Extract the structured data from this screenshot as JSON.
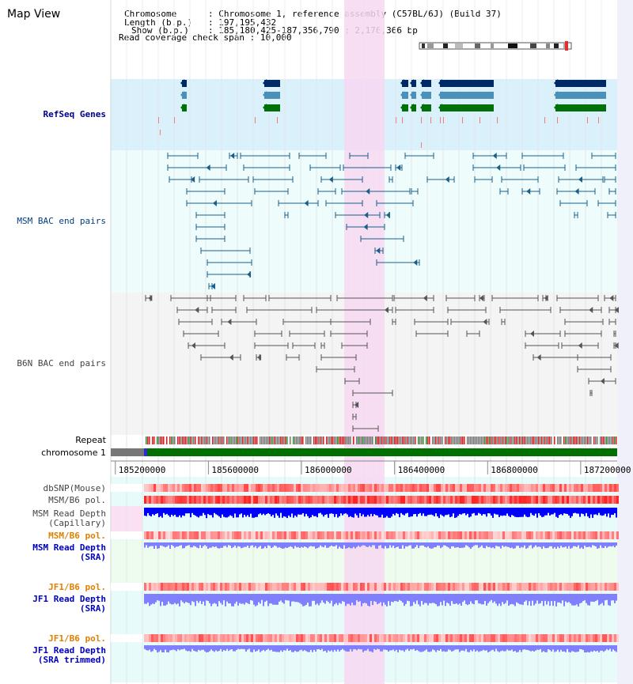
{
  "title": "Map View",
  "info": {
    "chromosome_label": "Chromosome",
    "chromosome_value": "Chromosome 1, reference assembly (C57BL/6J) (Build 37)",
    "length_label": "Length (b.p.)",
    "length_value": "197,195,432",
    "show_label": "Show (b.p.)",
    "show_value": "185,180,425-187,356,790 : 2,176,366 bp",
    "span_label": "Read coverage check span",
    "span_value": "10,000"
  },
  "tracks": {
    "refseq": "RefSeq Genes",
    "msm_bac": "MSM BAC end pairs",
    "b6n_bac": "B6N BAC end pairs",
    "repeat": "Repeat",
    "chromosome": "chromosome 1",
    "dbsnp": "dbSNP(Mouse)",
    "msm_b6_pol": "MSM/B6 pol.",
    "msm_depth_cap_1": "MSM Read Depth",
    "msm_depth_cap_2": "(Capillary)",
    "msm_b6_pol_2": "MSM/B6 pol.",
    "msm_depth_sra_1": "MSM Read Depth",
    "msm_depth_sra_2": "(SRA)",
    "jf1_b6_pol": "JF1/B6 pol.",
    "jf1_depth_sra_1": "JF1 Read Depth",
    "jf1_depth_sra_2": "(SRA)",
    "jf1_b6_pol_2": "JF1/B6 pol.",
    "jf1_depth_trim_1": "JF1 Read Depth",
    "jf1_depth_trim_2": "(SRA trimmed)"
  },
  "axis": {
    "ticks": [
      "185200000",
      "185600000",
      "186000000",
      "186400000",
      "186800000",
      "187200000"
    ],
    "tick_values": [
      185200000,
      185600000,
      186000000,
      186400000,
      186800000,
      187200000
    ],
    "range": [
      185180425,
      187356790
    ]
  },
  "colors": {
    "refseq_bg": "#daf0fb",
    "bac_bg": "#effcfc",
    "b6n_bg": "#f4f4f4",
    "highlight": "#f7d8f1",
    "gene_navy": "#002a66",
    "gene_blue": "#4a90b8",
    "gene_green": "#00700a",
    "msm_line": "#1a5f8a",
    "b6n_line": "#555555",
    "chromosome_green": "#007000",
    "depth_dark": "#0000ff",
    "depth_light": "#8080ff"
  }
}
